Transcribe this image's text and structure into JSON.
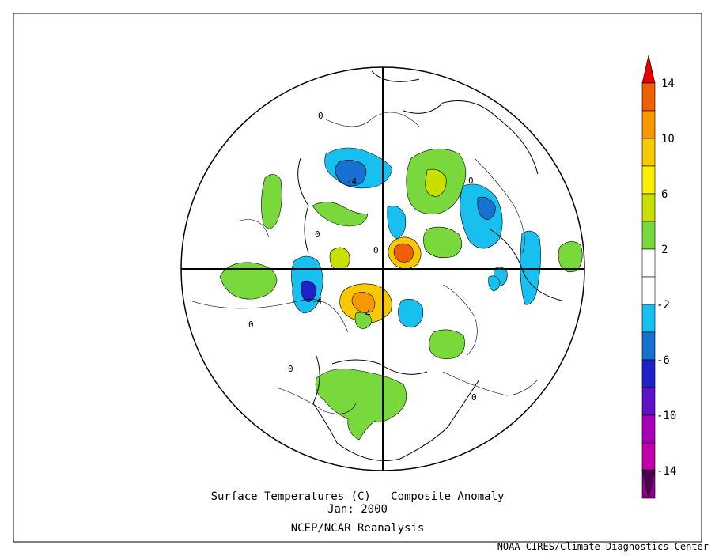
{
  "map": {
    "title_line1": "Surface Temperatures (C)   Composite Anomaly",
    "title_line2": "Jan: 2000",
    "title_line3": "NCEP/NCAR Reanalysis",
    "credit": "NOAA-CIRES/Climate Diagnostics Center",
    "projection": "north-polar-stereographic",
    "contour_labels": [
      "0",
      "-4",
      "0",
      "0",
      "-4",
      "4",
      "0",
      "0",
      "0",
      "0"
    ]
  },
  "colorbar": {
    "tick_labels": [
      "14",
      "10",
      "6",
      "2",
      "-2",
      "-6",
      "-10",
      "-14"
    ],
    "colors": [
      "#e80000",
      "#f06000",
      "#f89800",
      "#f8c800",
      "#f8f000",
      "#c8e000",
      "#78d83c",
      "#ffffff",
      "#ffffff",
      "#18c0f0",
      "#1870d0",
      "#2020c8",
      "#6010c8",
      "#a800b8",
      "#c000a8",
      "#8c008c",
      "#500050"
    ]
  }
}
